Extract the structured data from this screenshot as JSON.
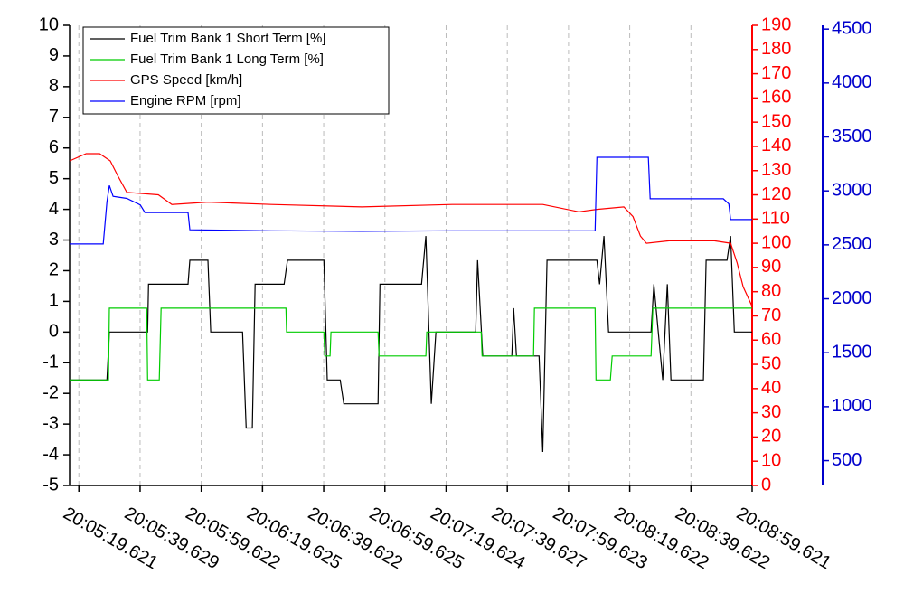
{
  "chart_data": {
    "type": "line",
    "xlim": [
      "20:05:16.6",
      "20:08:59.621"
    ],
    "xticks": [
      "20:05:19.621",
      "20:05:39.629",
      "20:05:59.622",
      "20:06:19.625",
      "20:06:39.622",
      "20:06:59.625",
      "20:07:19.624",
      "20:07:39.627",
      "20:07:59.623",
      "20:08:19.622",
      "20:08:39.622",
      "20:08:59.621"
    ],
    "ylim": [
      -5,
      10
    ],
    "yticks": [
      -5,
      -4,
      -3,
      -2,
      -1,
      0,
      1,
      2,
      3,
      4,
      5,
      6,
      7,
      8,
      9,
      10
    ],
    "y2lim": [
      0,
      190
    ],
    "y2ticks": [
      0,
      10,
      20,
      30,
      40,
      50,
      60,
      70,
      80,
      90,
      100,
      110,
      120,
      130,
      140,
      150,
      160,
      170,
      180,
      190
    ],
    "y2color": "#ff0000",
    "y3lim": [
      270,
      4535
    ],
    "y3ticks": [
      500,
      1000,
      1500,
      2000,
      2500,
      3000,
      3500,
      4000,
      4500
    ],
    "y3color": "#0000cc",
    "grid": true,
    "legend": "upper left",
    "series": [
      {
        "name": "Fuel Trim Bank 1 Short Term [%]",
        "color": "#000000",
        "axis": "y",
        "x": [
          "20:05:16.6",
          "20:05:28.8",
          "20:05:29.6",
          "20:05:42.1",
          "20:05:42.4",
          "20:05:55.3",
          "20:05:55.9",
          "20:06:01.8",
          "20:06:02.7",
          "20:06:13.1",
          "20:06:14.3",
          "20:06:16.3",
          "20:06:17.2",
          "20:06:26.7",
          "20:06:27.8",
          "20:06:39.7",
          "20:06:40.8",
          "20:06:45.0",
          "20:06:46.2",
          "20:06:57.4",
          "20:06:58.0",
          "20:07:11.6",
          "20:07:13.0",
          "20:07:14.8",
          "20:07:16.3",
          "20:07:29.3",
          "20:07:29.9",
          "20:07:31.6",
          "20:07:41.1",
          "20:07:41.7",
          "20:07:42.6",
          "20:07:50.0",
          "20:07:51.2",
          "20:07:52.6",
          "20:08:08.9",
          "20:08:09.8",
          "20:08:11.2",
          "20:08:12.7",
          "20:08:26.6",
          "20:08:27.5",
          "20:08:30.4",
          "20:08:31.9",
          "20:08:33.1",
          "20:08:43.7",
          "20:08:44.6",
          "20:08:51.4",
          "20:08:52.6",
          "20:08:53.8",
          "20:08:59.6"
        ],
        "values": [
          -1.56,
          -1.56,
          0,
          0,
          1.56,
          1.56,
          2.34,
          2.34,
          0,
          0,
          -3.13,
          -3.13,
          1.56,
          1.56,
          2.34,
          2.34,
          -1.56,
          -1.56,
          -2.34,
          -2.34,
          1.56,
          1.56,
          3.13,
          -2.34,
          0,
          0,
          2.34,
          -0.78,
          -0.78,
          0.78,
          -0.78,
          -0.78,
          -3.91,
          2.34,
          2.34,
          1.56,
          3.13,
          0,
          0,
          1.56,
          -1.56,
          1.56,
          -1.56,
          -1.56,
          2.34,
          2.34,
          3.13,
          0,
          0
        ]
      },
      {
        "name": "Fuel Trim Bank 1 Long Term [%]",
        "color": "#00cc00",
        "axis": "y",
        "x": [
          "20:05:16.6",
          "20:05:29.3",
          "20:05:29.6",
          "20:05:41.8",
          "20:05:42.1",
          "20:05:45.9",
          "20:05:46.5",
          "20:06:27.3",
          "20:06:27.5",
          "20:06:39.7",
          "20:06:40.0",
          "20:06:41.7",
          "20:06:42.0",
          "20:06:57.4",
          "20:06:57.7",
          "20:07:13.0",
          "20:07:13.3",
          "20:07:31.1",
          "20:07:31.4",
          "20:07:48.2",
          "20:07:48.5",
          "20:08:08.3",
          "20:08:08.6",
          "20:08:13.3",
          "20:08:13.9",
          "20:08:26.6",
          "20:08:27.2",
          "20:08:59.6"
        ],
        "values": [
          -1.56,
          -1.56,
          0.78,
          0.78,
          -1.56,
          -1.56,
          0.78,
          0.78,
          0,
          0,
          -0.78,
          -0.78,
          0,
          0,
          -0.78,
          -0.78,
          0,
          0,
          -0.78,
          -0.78,
          0.78,
          0.78,
          -1.56,
          -1.56,
          -0.78,
          -0.78,
          0.78,
          0.78
        ]
      },
      {
        "name": "GPS Speed [km/h]",
        "color": "#ff0000",
        "axis": "y2",
        "x": [
          "20:05:16.6",
          "20:05:22.0",
          "20:05:26.4",
          "20:05:29.9",
          "20:05:32.3",
          "20:05:35.3",
          "20:05:45.6",
          "20:05:50.0",
          "20:06:01.8",
          "20:06:22.5",
          "20:06:52.1",
          "20:07:21.6",
          "20:07:51.2",
          "20:08:03.0",
          "20:08:08.9",
          "20:08:17.7",
          "20:08:20.7",
          "20:08:23.1",
          "20:08:25.1",
          "20:08:32.5",
          "20:08:47.3",
          "20:08:52.6",
          "20:08:54.7",
          "20:08:56.7",
          "20:08:59.6"
        ],
        "values": [
          134,
          137,
          137,
          134,
          128,
          121,
          120,
          116,
          117,
          116,
          115,
          116,
          116,
          113,
          114,
          115,
          111,
          103,
          100,
          101,
          101,
          100,
          92,
          82,
          74
        ]
      },
      {
        "name": "Engine RPM [rpm]",
        "color": "#0000ff",
        "axis": "y3",
        "x": [
          "20:05:16.6",
          "20:05:27.6",
          "20:05:28.8",
          "20:05:29.6",
          "20:05:30.8",
          "20:05:35.3",
          "20:05:39.7",
          "20:05:41.2",
          "20:05:55.3",
          "20:05:55.9",
          "20:06:22.5",
          "20:06:52.1",
          "20:07:21.6",
          "20:07:48.2",
          "20:08:08.3",
          "20:08:08.9",
          "20:08:25.7",
          "20:08:26.3",
          "20:08:50.2",
          "20:08:52.0",
          "20:08:52.6",
          "20:08:59.6"
        ],
        "values": [
          2508,
          2508,
          2900,
          3050,
          2950,
          2930,
          2870,
          2800,
          2800,
          2640,
          2630,
          2625,
          2630,
          2630,
          2630,
          3312,
          3312,
          2927,
          2927,
          2880,
          2734,
          2734
        ]
      }
    ]
  }
}
